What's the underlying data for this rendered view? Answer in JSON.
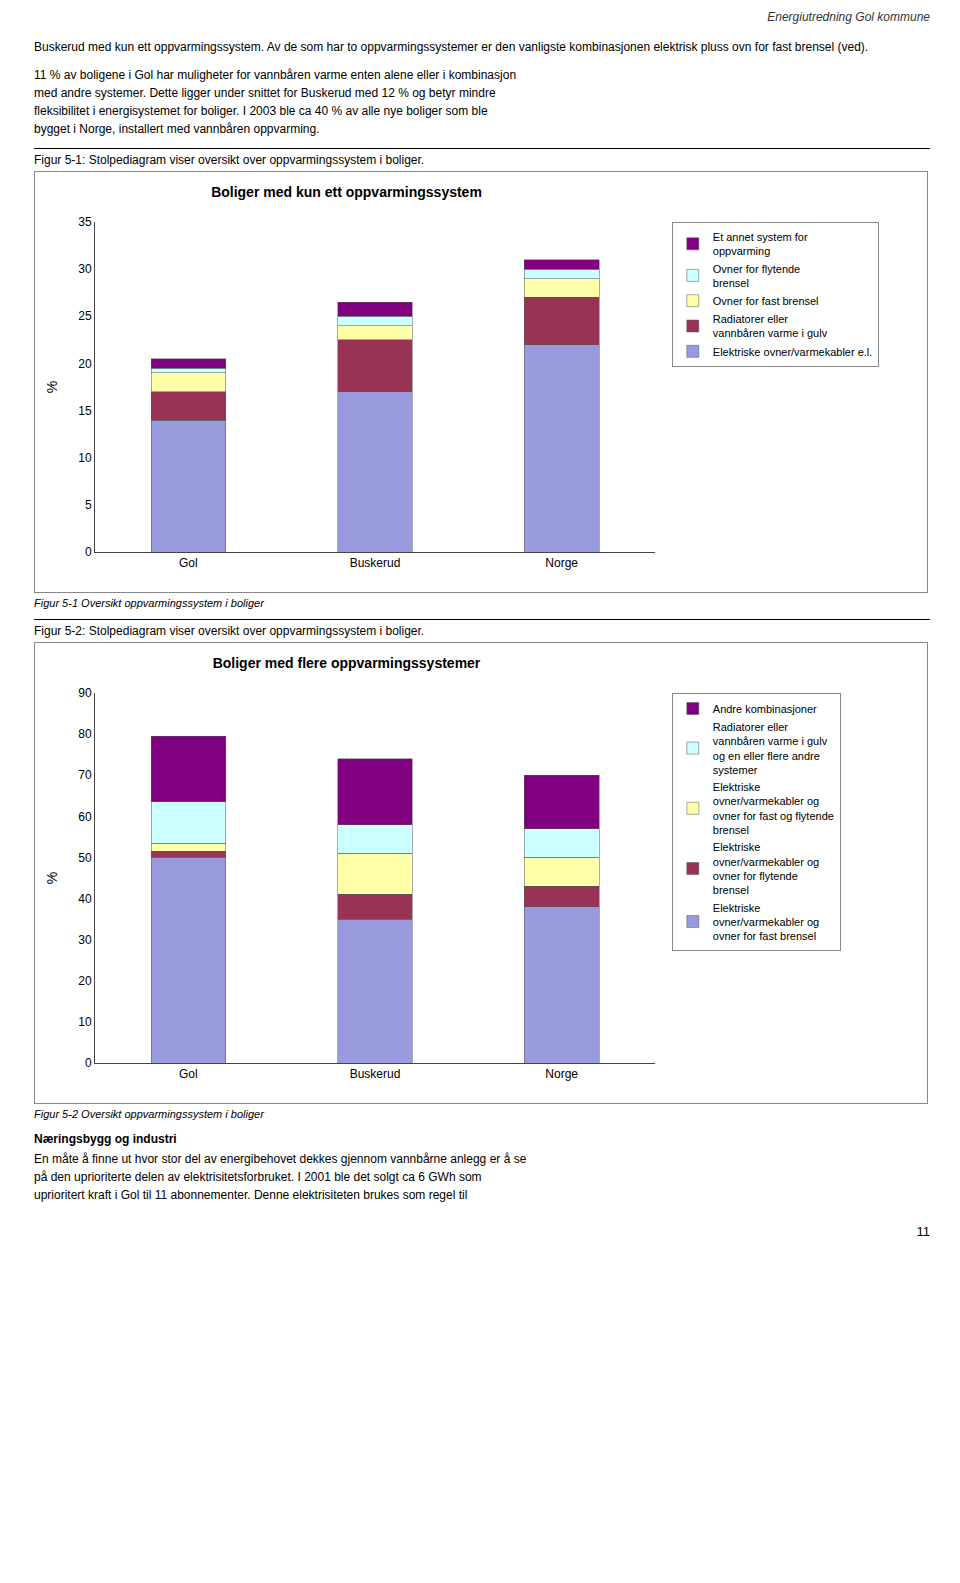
{
  "page_header": "Energiutredning Gol kommune",
  "page_number": "11",
  "text1": "Buskerud med kun ett oppvarmingssystem. Av de som har to oppvarmingssystemer er den vanligste kombinasjonen elektrisk pluss ovn for fast brensel (ved).",
  "text2_lines": [
    "11 % av boligene i Gol har muligheter for vannbåren varme enten alene eller i kombinasjon",
    "med andre systemer. Dette ligger under snittet for Buskerud med 12 % og betyr mindre",
    "fleksibilitet i energisystemet for boliger. I 2003 ble ca 40 % av alle nye boliger som ble",
    "bygget i Norge, installert med vannbåren oppvarming."
  ],
  "fig1_caption": "Figur 5-1: Stolpediagram viser oversikt over oppvarmingssystem i boliger.",
  "fig1_label": "Figur 5-1 Oversikt oppvarmingssystem i boliger",
  "fig2_caption": "Figur 5-2: Stolpediagram viser oversikt over oppvarmingssystem i boliger.",
  "fig2_label": "Figur 5-2 Oversikt oppvarmingssystem i boliger",
  "naering_title": "Næringsbygg og industri",
  "naering_text_lines": [
    "En måte å finne ut hvor stor del av energibehovet dekkes gjennom vannbårne anlegg er å se",
    "på den uprioriterte delen av elektrisitetsforbruket. I 2001 ble det solgt ca 6 GWh som",
    "uprioritert kraft i Gol til 11 abonnementer. Denne elektrisiteten brukes som regel til"
  ],
  "chart_data": [
    {
      "type": "bar",
      "stacked": true,
      "grid": false,
      "legend": "right",
      "title": "Boliger med kun ett oppvarmingssystem",
      "ylabel": "%",
      "categories": [
        "Gol",
        "Buskerud",
        "Norge"
      ],
      "ylim": [
        0,
        35
      ],
      "yticks": [
        0,
        5,
        10,
        15,
        20,
        25,
        30,
        35
      ],
      "series": [
        {
          "name": "Elektriske ovner/varmekabler e.l.",
          "color": "#9999dd",
          "values": [
            14,
            17,
            22
          ]
        },
        {
          "name": "Radiatorer eller\nvannbåren varme i gulv",
          "color": "#993355",
          "values": [
            3,
            5.5,
            5
          ]
        },
        {
          "name": "Ovner for fast brensel",
          "color": "#ffffaa",
          "values": [
            2,
            1.5,
            2
          ]
        },
        {
          "name": "Ovner for flytende\nbrensel",
          "color": "#ccffff",
          "values": [
            0.5,
            1,
            1
          ]
        },
        {
          "name": "Et annet system for\noppvarming",
          "color": "#800080",
          "values": [
            1,
            1.5,
            1
          ]
        }
      ]
    },
    {
      "type": "bar",
      "stacked": true,
      "grid": false,
      "legend": "right",
      "title": "Boliger med flere oppvarmingssystemer",
      "ylabel": "%",
      "categories": [
        "Gol",
        "Buskerud",
        "Norge"
      ],
      "ylim": [
        0,
        90
      ],
      "yticks": [
        0,
        10,
        20,
        30,
        40,
        50,
        60,
        70,
        80,
        90
      ],
      "series": [
        {
          "name": "Elektriske\novner/varmekabler og\novner for fast brensel",
          "color": "#9999dd",
          "values": [
            50,
            35,
            38
          ]
        },
        {
          "name": "Elektriske\novner/varmekabler og\novner for flytende\nbrensel",
          "color": "#993355",
          "values": [
            1.5,
            6,
            5
          ]
        },
        {
          "name": "Elektriske\novner/varmekabler og\novner for fast og flytende\nbrensel",
          "color": "#ffffaa",
          "values": [
            2,
            10,
            7
          ]
        },
        {
          "name": "Radiatorer eller\nvannbåren varme i gulv\nog en eller flere andre\nsystemer",
          "color": "#ccffff",
          "values": [
            10,
            7,
            7
          ]
        },
        {
          "name": "Andre kombinasjoner",
          "color": "#800080",
          "values": [
            16,
            16,
            13
          ]
        }
      ]
    }
  ]
}
